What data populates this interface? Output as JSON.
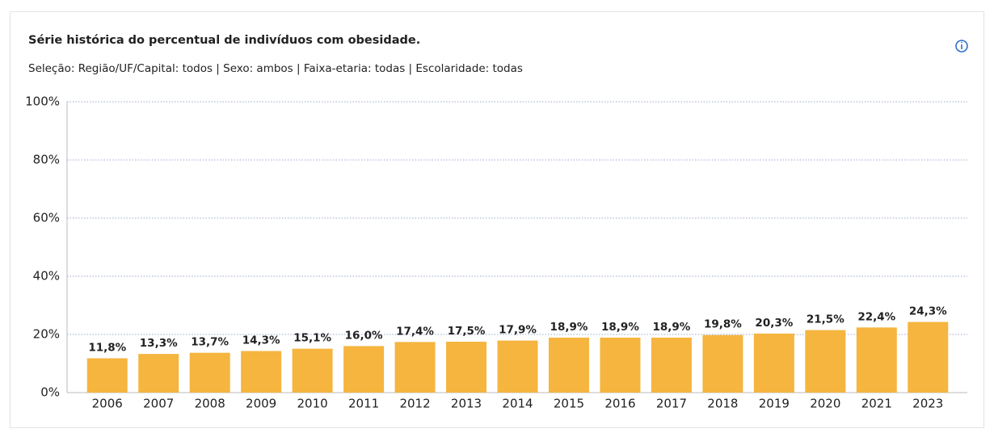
{
  "chart_data": {
    "type": "bar",
    "title": "Série histórica do percentual de indivíduos com obesidade.",
    "subtitle": "Seleção: Região/UF/Capital: todos | Sexo: ambos | Faixa-etaria: todas | Escolaridade: todas",
    "categories": [
      "2006",
      "2007",
      "2008",
      "2009",
      "2010",
      "2011",
      "2012",
      "2013",
      "2014",
      "2015",
      "2016",
      "2017",
      "2018",
      "2019",
      "2020",
      "2021",
      "2023"
    ],
    "values": [
      11.8,
      13.3,
      13.7,
      14.3,
      15.1,
      16.0,
      17.4,
      17.5,
      17.9,
      18.9,
      18.9,
      18.9,
      19.8,
      20.3,
      21.5,
      22.4,
      24.3
    ],
    "value_labels": [
      "11,8%",
      "13,3%",
      "13,7%",
      "14,3%",
      "15,1%",
      "16,0%",
      "17,4%",
      "17,5%",
      "17,9%",
      "18,9%",
      "18,9%",
      "18,9%",
      "19,8%",
      "20,3%",
      "21,5%",
      "22,4%",
      "24,3%"
    ],
    "color": "#f5b53f",
    "ylim": [
      0,
      100
    ],
    "yticks": [
      {
        "value": 0,
        "label": "0%"
      },
      {
        "value": 20,
        "label": "20%"
      },
      {
        "value": 40,
        "label": "40%"
      },
      {
        "value": 60,
        "label": "60%"
      },
      {
        "value": 80,
        "label": "80%"
      },
      {
        "value": 100,
        "label": "100%"
      }
    ],
    "grid": true
  }
}
